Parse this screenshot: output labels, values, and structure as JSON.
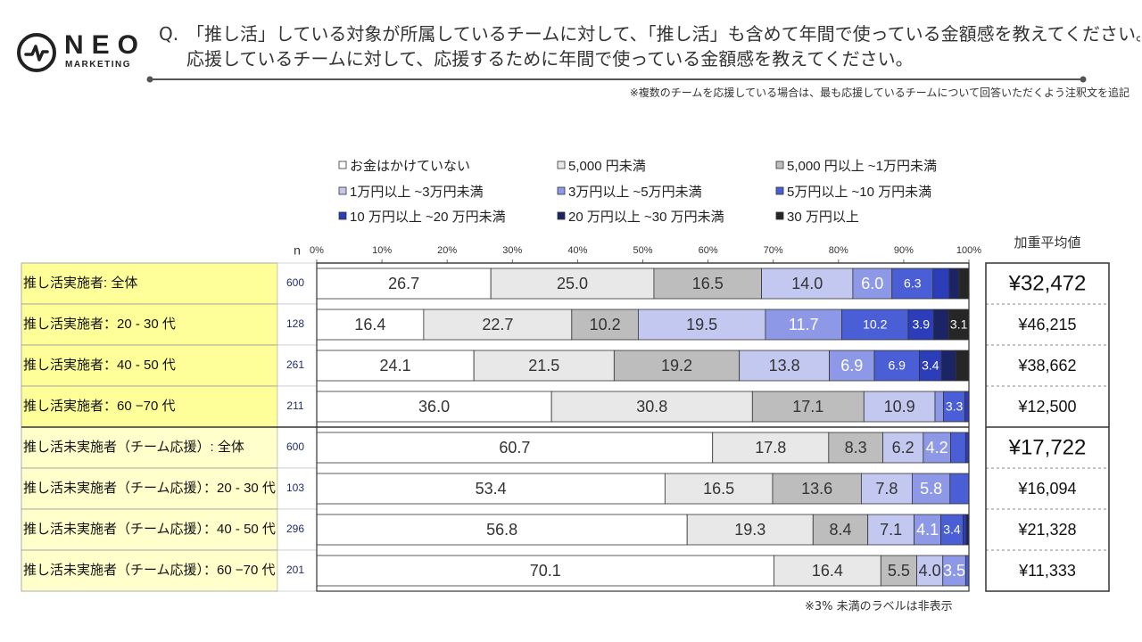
{
  "logo": {
    "name": "NEO",
    "sub": "MARKETING"
  },
  "question": {
    "mark": "Q.",
    "line1": "「推し活」している対象が所属しているチームに対して、「推し活」も含めて年間で使っている金額感を教えてください。",
    "line2": "応援しているチームに対して、応援するために年間で使っている金額感を教えてください。"
  },
  "note_top": "※複数のチームを応援している場合は、最も応援しているチームについて回答いただくよう注釈文を追記",
  "note_bottom": "※3% 未満のラベルは非表示",
  "colors": {
    "row_highlight": "#ffff99",
    "row_light": "#ffffcc",
    "border": "#333333",
    "grid": "#666666",
    "n_text": "#1f2d6e"
  },
  "chart_data": {
    "type": "bar",
    "orientation": "horizontal",
    "stacked": true,
    "n_label": "n",
    "x_ticks": [
      "0%",
      "10%",
      "20%",
      "30%",
      "40%",
      "50%",
      "60%",
      "70%",
      "80%",
      "90%",
      "100%"
    ],
    "xlim": [
      0,
      100
    ],
    "weighted_label": "加重平均値",
    "label_threshold": 3,
    "legend": [
      {
        "name": "お金はかけていない",
        "color": "#ffffff"
      },
      {
        "name": "5,000 円未満",
        "color": "#e8e8e8"
      },
      {
        "name": "5,000 円以上 ~1万円未満",
        "color": "#bdbdbd"
      },
      {
        "name": "1万円以上 ~3万円未満",
        "color": "#c2c8f0"
      },
      {
        "name": "3万円以上 ~5万円未満",
        "color": "#8d99e6"
      },
      {
        "name": "5万円以上 ~10 万円未満",
        "color": "#4a5fd6"
      },
      {
        "name": "10 万円以上 ~20 万円未満",
        "color": "#2b3db8"
      },
      {
        "name": "20 万円以上 ~30 万円未満",
        "color": "#1b2566"
      },
      {
        "name": "30 万円以上",
        "color": "#262626"
      }
    ],
    "rows": [
      {
        "label": "推し活実施者: 全体",
        "n": "600",
        "weighted_avg": "¥32,472",
        "group_total": true,
        "highlight": true,
        "values": [
          26.7,
          25.0,
          16.5,
          14.0,
          6.0,
          6.3,
          2.5,
          1.5,
          1.5
        ]
      },
      {
        "label": "推し活実施者：20 - 30 代",
        "n": "128",
        "weighted_avg": "¥46,215",
        "group_total": false,
        "highlight": true,
        "values": [
          16.4,
          22.7,
          10.2,
          19.5,
          11.7,
          10.2,
          3.9,
          2.3,
          3.1
        ]
      },
      {
        "label": "推し活実施者：40 - 50 代",
        "n": "261",
        "weighted_avg": "¥38,662",
        "group_total": false,
        "highlight": true,
        "values": [
          24.1,
          21.5,
          19.2,
          13.8,
          6.9,
          6.9,
          3.4,
          2.2,
          2.0
        ]
      },
      {
        "label": "推し活実施者：60 −70 代",
        "n": "211",
        "weighted_avg": "¥12,500",
        "group_total": false,
        "highlight": true,
        "values": [
          36.0,
          30.8,
          17.1,
          10.9,
          1.3,
          3.3,
          0.6,
          0,
          0
        ]
      },
      {
        "label": "推し活未実施者（チーム応援）: 全体",
        "n": "600",
        "weighted_avg": "¥17,722",
        "group_total": true,
        "highlight": false,
        "values": [
          60.7,
          17.8,
          8.3,
          6.2,
          4.2,
          2.3,
          0.5,
          0,
          0
        ]
      },
      {
        "label": "推し活未実施者（チーム応援）：20 - 30 代",
        "n": "103",
        "weighted_avg": "¥16,094",
        "group_total": false,
        "highlight": false,
        "values": [
          53.4,
          16.5,
          13.6,
          7.8,
          5.8,
          2.9,
          0,
          0,
          0
        ]
      },
      {
        "label": "推し活未実施者（チーム応援）：40 - 50 代",
        "n": "296",
        "weighted_avg": "¥21,328",
        "group_total": false,
        "highlight": false,
        "values": [
          56.8,
          19.3,
          8.4,
          7.1,
          4.1,
          3.4,
          0.5,
          0.4,
          0
        ]
      },
      {
        "label": "推し活未実施者（チーム応援）：60 −70 代",
        "n": "201",
        "weighted_avg": "¥11,333",
        "group_total": false,
        "highlight": false,
        "values": [
          70.1,
          16.4,
          5.5,
          4.0,
          3.5,
          0.5,
          0,
          0,
          0
        ]
      }
    ]
  }
}
